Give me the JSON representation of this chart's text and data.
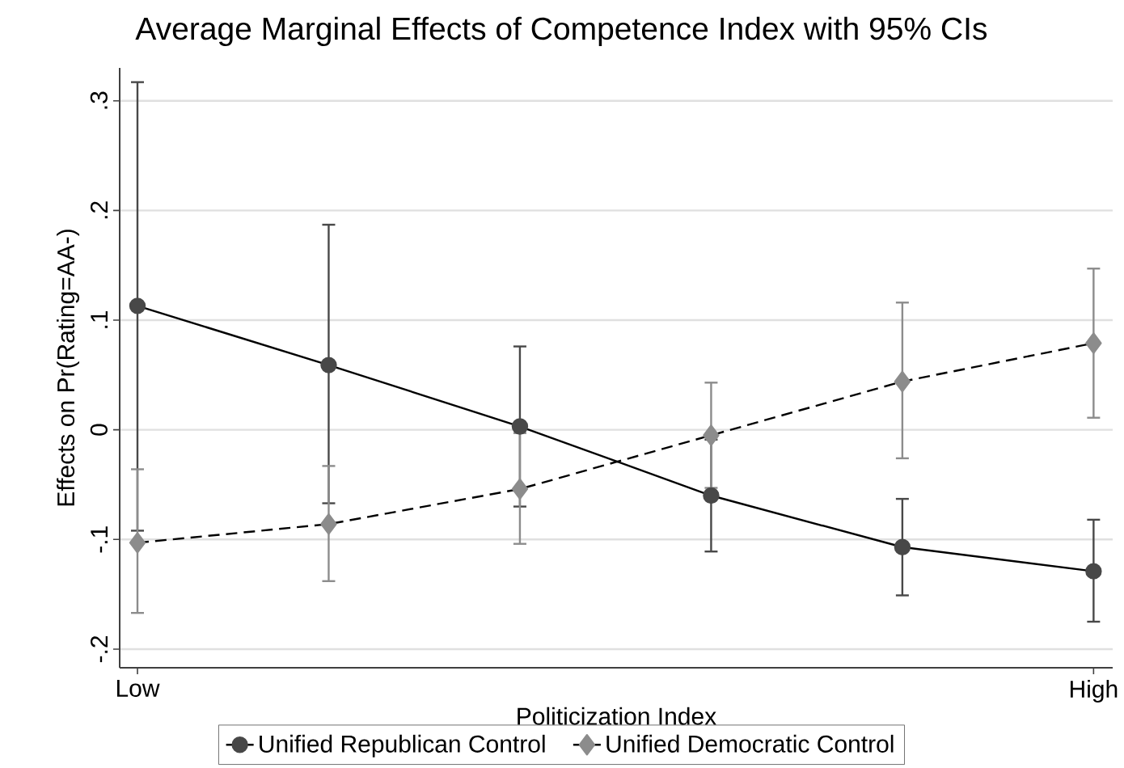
{
  "chart_data": {
    "type": "line",
    "title": "Average Marginal Effects of Competence Index with 95% CIs",
    "xlabel": "Politicization Index",
    "ylabel": "Effects on Pr(Rating=AA-)",
    "categories": [
      "Low",
      null,
      null,
      null,
      null,
      "High"
    ],
    "ylim": [
      -0.217,
      0.33
    ],
    "yticks": [
      {
        "value": -0.2,
        "label": "-.2"
      },
      {
        "value": -0.1,
        "label": "-.1"
      },
      0,
      {
        "value": 0.1,
        "label": ".1"
      },
      {
        "value": 0.2,
        "label": ".2"
      },
      {
        "value": 0.3,
        "label": ".3"
      }
    ],
    "grid": "y",
    "legend": "bottom",
    "series": [
      {
        "name": "Unified Republican Control",
        "color": "#484848",
        "marker": "circle",
        "line_style": "solid",
        "values": [
          0.113,
          0.059,
          0.003,
          -0.06,
          -0.107,
          -0.129
        ],
        "errors": [
          [
            -0.092,
            0.317
          ],
          [
            -0.067,
            0.187
          ],
          [
            -0.07,
            0.076
          ],
          [
            -0.111,
            -0.009
          ],
          [
            -0.151,
            -0.063
          ],
          [
            -0.175,
            -0.082
          ]
        ]
      },
      {
        "name": "Unified Democratic Control",
        "color": "#8c8c8c",
        "marker": "diamond",
        "line_style": "dashed",
        "values": [
          -0.103,
          -0.086,
          -0.054,
          -0.005,
          0.044,
          0.079
        ],
        "errors": [
          [
            -0.167,
            -0.036
          ],
          [
            -0.138,
            -0.033
          ],
          [
            -0.104,
            -0.003
          ],
          [
            -0.053,
            0.043
          ],
          [
            -0.026,
            0.116
          ],
          [
            0.011,
            0.147
          ]
        ]
      }
    ]
  }
}
